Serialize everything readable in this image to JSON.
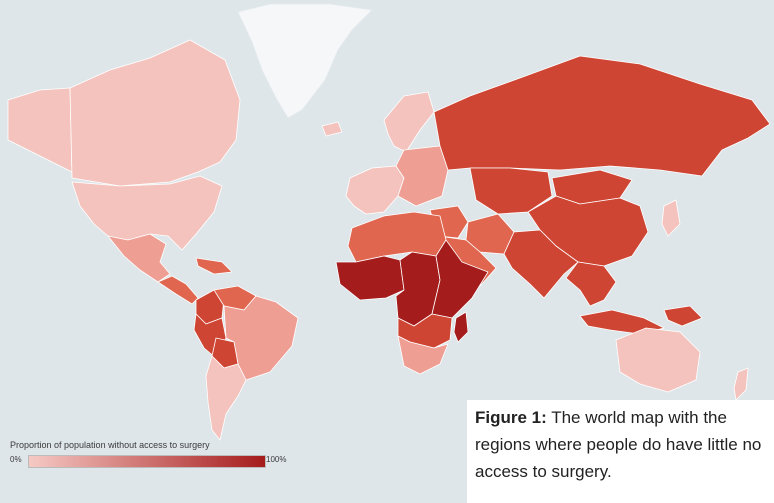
{
  "legend": {
    "title": "Proportion of population without access to surgery",
    "min_label": "0%",
    "max_label": "100%",
    "min_color": "#f6c9c4",
    "max_color": "#a51c1c"
  },
  "caption": {
    "label": "Figure 1:",
    "text": " The world map with the regions where people do have little no access to surgery."
  },
  "colors": {
    "ocean": "#dfe6ea",
    "ice": "#f5f7f8",
    "very_low": "#f4c3bd",
    "low": "#ef9e93",
    "medium": "#e0664f",
    "high": "#cf4533",
    "very_high": "#a51c1c"
  },
  "regions": [
    {
      "name": "greenland",
      "level": "ice"
    },
    {
      "name": "canada",
      "level": "very_low"
    },
    {
      "name": "alaska",
      "level": "very_low"
    },
    {
      "name": "usa",
      "level": "very_low"
    },
    {
      "name": "mexico",
      "level": "low"
    },
    {
      "name": "central-america",
      "level": "medium"
    },
    {
      "name": "caribbean",
      "level": "medium"
    },
    {
      "name": "colombia",
      "level": "high"
    },
    {
      "name": "venezuela",
      "level": "medium"
    },
    {
      "name": "peru",
      "level": "high"
    },
    {
      "name": "bolivia",
      "level": "high"
    },
    {
      "name": "brazil",
      "level": "low"
    },
    {
      "name": "southern-cone",
      "level": "very_low"
    },
    {
      "name": "iceland",
      "level": "very_low"
    },
    {
      "name": "scandinavia",
      "level": "very_low"
    },
    {
      "name": "western-europe",
      "level": "very_low"
    },
    {
      "name": "eastern-europe",
      "level": "low"
    },
    {
      "name": "russia",
      "level": "high"
    },
    {
      "name": "kazakhstan",
      "level": "high"
    },
    {
      "name": "china",
      "level": "high"
    },
    {
      "name": "mongolia",
      "level": "high"
    },
    {
      "name": "middle-east",
      "level": "medium"
    },
    {
      "name": "arabian-peninsula",
      "level": "medium"
    },
    {
      "name": "iran",
      "level": "medium"
    },
    {
      "name": "south-asia",
      "level": "high"
    },
    {
      "name": "southeast-asia",
      "level": "high"
    },
    {
      "name": "indonesia",
      "level": "high"
    },
    {
      "name": "japan",
      "level": "very_low"
    },
    {
      "name": "north-africa",
      "level": "medium"
    },
    {
      "name": "west-africa",
      "level": "very_high"
    },
    {
      "name": "central-africa",
      "level": "very_high"
    },
    {
      "name": "east-africa",
      "level": "very_high"
    },
    {
      "name": "southern-africa",
      "level": "high"
    },
    {
      "name": "south-africa",
      "level": "low"
    },
    {
      "name": "madagascar",
      "level": "very_high"
    },
    {
      "name": "australia",
      "level": "very_low"
    },
    {
      "name": "new-zealand",
      "level": "very_low"
    },
    {
      "name": "papua-new-guinea",
      "level": "high"
    }
  ]
}
